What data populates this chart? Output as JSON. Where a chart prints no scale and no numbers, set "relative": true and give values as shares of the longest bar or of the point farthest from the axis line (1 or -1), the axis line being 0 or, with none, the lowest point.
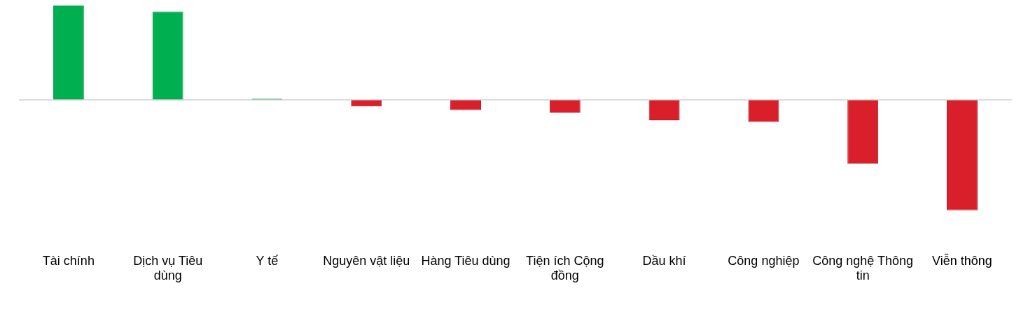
{
  "chart_data": {
    "type": "bar",
    "relative": true,
    "categories": [
      "Tài chính",
      "Dịch vụ Tiêu dùng",
      "Y tế",
      "Nguyên vật liệu",
      "Hàng Tiêu dùng",
      "Tiện ích Cộng đồng",
      "Dầu khí",
      "Công nghiệp",
      "Công nghệ Thông tin",
      "Viễn thông"
    ],
    "values": [
      0.854,
      0.8,
      0.011,
      -0.059,
      -0.092,
      -0.114,
      -0.184,
      -0.2,
      -0.578,
      -1
    ],
    "colors": [
      "#00b050",
      "#00b050",
      "#00b050",
      "#d9202a",
      "#d9202a",
      "#d9202a",
      "#d9202a",
      "#d9202a",
      "#d9202a",
      "#d9202a"
    ],
    "grid": false,
    "legend": false
  }
}
